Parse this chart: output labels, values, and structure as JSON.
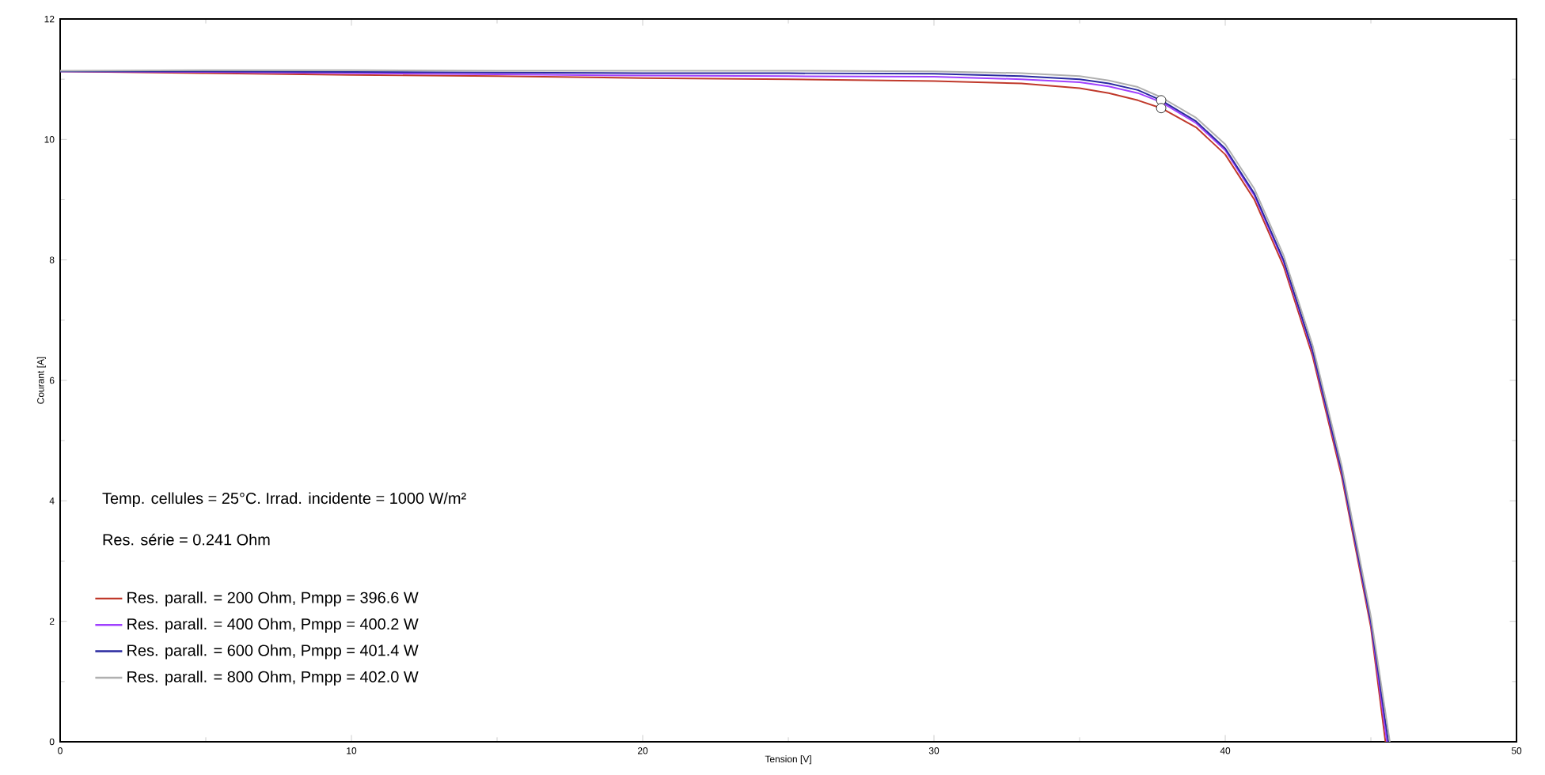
{
  "chart_data": {
    "type": "line",
    "xlabel": "Tension [V]",
    "ylabel": "Courant [A]",
    "xlim": [
      0,
      50
    ],
    "ylim": [
      0,
      12
    ],
    "xticks": [
      0,
      10,
      20,
      30,
      40,
      50
    ],
    "yticks": [
      0,
      2,
      4,
      6,
      8,
      10,
      12
    ],
    "grid": false,
    "legend": "bottom left",
    "annotations": [
      "Temp. cellules = 25°C. Irrad. incidente = 1000 W/m²",
      "Res. série = 0.241 Ohm"
    ],
    "series": [
      {
        "name": "Res. parall. = 200 Ohm,  Pmpp = 396.6 W",
        "color": "#c0392b",
        "x": [
          0,
          5,
          10,
          15,
          20,
          25,
          30,
          33,
          35,
          36,
          37,
          37.8,
          39,
          40,
          41,
          42,
          43,
          44,
          45,
          45.5
        ],
        "values": [
          11.13,
          11.1,
          11.07,
          11.05,
          11.02,
          11.0,
          10.97,
          10.93,
          10.85,
          10.77,
          10.65,
          10.52,
          10.2,
          9.75,
          9.0,
          7.9,
          6.4,
          4.4,
          1.9,
          0
        ]
      },
      {
        "name": "Res. parall. = 400 Ohm,  Pmpp = 400.2 W",
        "color": "#a040ff",
        "x": [
          0,
          5,
          10,
          15,
          20,
          25,
          30,
          33,
          35,
          36,
          37,
          37.8,
          39,
          40,
          41,
          42,
          43,
          44,
          45,
          45.55
        ],
        "values": [
          11.13,
          11.12,
          11.1,
          11.08,
          11.06,
          11.05,
          11.04,
          11.0,
          10.95,
          10.88,
          10.77,
          10.62,
          10.27,
          9.82,
          9.07,
          7.97,
          6.47,
          4.47,
          1.97,
          0
        ]
      },
      {
        "name": "Res. parall. = 600 Ohm,  Pmpp = 401.4 W",
        "color": "#2a2aa0",
        "x": [
          0,
          5,
          10,
          15,
          20,
          25,
          30,
          33,
          35,
          36,
          37,
          37.8,
          39,
          40,
          41,
          42,
          43,
          44,
          45,
          45.6
        ],
        "values": [
          11.13,
          11.13,
          11.12,
          11.11,
          11.1,
          11.1,
          11.09,
          11.05,
          11.0,
          10.93,
          10.82,
          10.65,
          10.3,
          9.85,
          9.1,
          8.0,
          6.5,
          4.5,
          2.0,
          0
        ]
      },
      {
        "name": "Res. parall. = 800 Ohm,  Pmpp = 402.0 W",
        "color": "#b0b0b0",
        "x": [
          0,
          5,
          10,
          15,
          20,
          25,
          30,
          33,
          35,
          36,
          37,
          37.8,
          39,
          40,
          41,
          42,
          43,
          44,
          45,
          45.65
        ],
        "values": [
          11.14,
          11.15,
          11.15,
          11.14,
          11.14,
          11.14,
          11.13,
          11.1,
          11.05,
          10.98,
          10.87,
          10.7,
          10.36,
          9.92,
          9.18,
          8.08,
          6.58,
          4.58,
          2.08,
          0
        ]
      },
      {
        "type": "scatter",
        "color": "#000000",
        "x": [
          37.8,
          37.8
        ],
        "values": [
          10.65,
          10.52
        ]
      }
    ]
  }
}
